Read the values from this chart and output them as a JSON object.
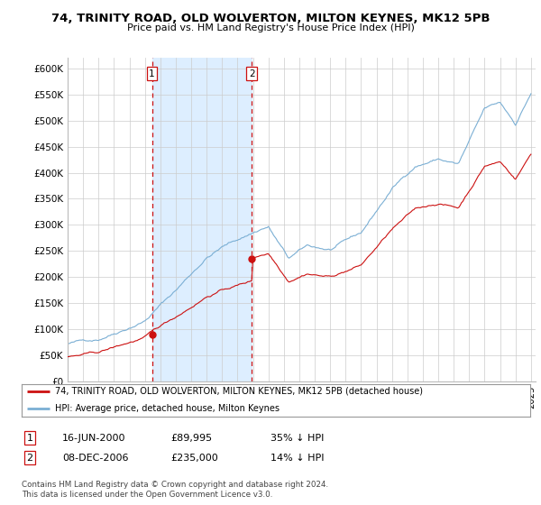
{
  "title": "74, TRINITY ROAD, OLD WOLVERTON, MILTON KEYNES, MK12 5PB",
  "subtitle": "Price paid vs. HM Land Registry's House Price Index (HPI)",
  "hpi_color": "#7bafd4",
  "price_color": "#cc1111",
  "marker_color": "#cc1111",
  "shade_color": "#ddeeff",
  "ylim": [
    0,
    620000
  ],
  "yticks": [
    0,
    50000,
    100000,
    150000,
    200000,
    250000,
    300000,
    350000,
    400000,
    450000,
    500000,
    550000,
    600000
  ],
  "ytick_labels": [
    "£0",
    "£50K",
    "£100K",
    "£150K",
    "£200K",
    "£250K",
    "£300K",
    "£350K",
    "£400K",
    "£450K",
    "£500K",
    "£550K",
    "£600K"
  ],
  "sale1_year": 2000.46,
  "sale1_price": 89995,
  "sale1_label": "1",
  "sale2_year": 2006.92,
  "sale2_price": 235000,
  "sale2_label": "2",
  "legend_line1": "74, TRINITY ROAD, OLD WOLVERTON, MILTON KEYNES, MK12 5PB (detached house)",
  "legend_line2": "HPI: Average price, detached house, Milton Keynes",
  "table_row1": [
    "1",
    "16-JUN-2000",
    "£89,995",
    "35% ↓ HPI"
  ],
  "table_row2": [
    "2",
    "08-DEC-2006",
    "£235,000",
    "14% ↓ HPI"
  ],
  "footnote": "Contains HM Land Registry data © Crown copyright and database right 2024.\nThis data is licensed under the Open Government Licence v3.0.",
  "background_color": "#ffffff",
  "grid_color": "#cccccc",
  "figsize": [
    6.0,
    5.6
  ],
  "dpi": 100
}
